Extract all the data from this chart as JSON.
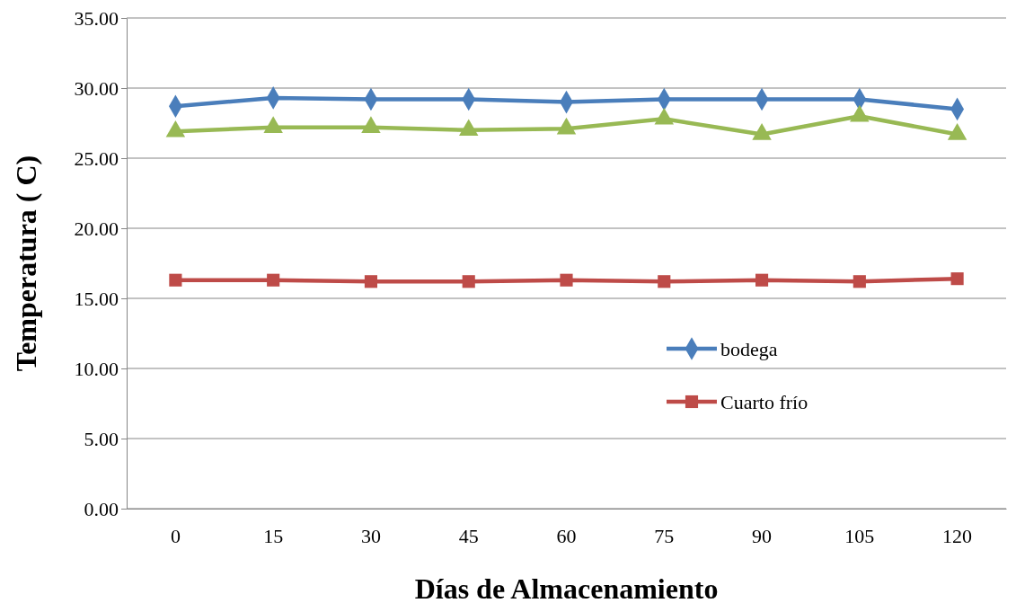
{
  "chart_data": {
    "type": "line",
    "xlabel": "Días de Almacenamiento",
    "ylabel": "Temperatura ( C)",
    "categories": [
      "0",
      "15",
      "30",
      "45",
      "60",
      "75",
      "90",
      "105",
      "120"
    ],
    "series": [
      {
        "name": "bodega",
        "color": "#4a7ebb",
        "marker": "diamond",
        "values": [
          28.7,
          29.3,
          29.2,
          29.2,
          29.0,
          29.2,
          29.2,
          29.2,
          28.5
        ]
      },
      {
        "name": "Cuarto frío",
        "color": "#be4b48",
        "marker": "square",
        "values": [
          16.3,
          16.3,
          16.2,
          16.2,
          16.3,
          16.2,
          16.3,
          16.2,
          16.4
        ]
      },
      {
        "color": "#98b954",
        "marker": "triangle",
        "values": [
          26.9,
          27.2,
          27.2,
          27.0,
          27.1,
          27.8,
          26.7,
          28.0,
          26.7
        ]
      }
    ],
    "ylim": [
      0,
      35
    ],
    "yticks": [
      {
        "value": 0,
        "label": "0.00"
      },
      {
        "value": 5,
        "label": "5.00"
      },
      {
        "value": 10,
        "label": "10.00"
      },
      {
        "value": 15,
        "label": "15.00"
      },
      {
        "value": 20,
        "label": "20.00"
      },
      {
        "value": 25,
        "label": "25.00"
      },
      {
        "value": 30,
        "label": "30.00"
      },
      {
        "value": 35,
        "label": "35.00"
      }
    ],
    "grid": "y",
    "legend": "right",
    "line_style": "solid"
  }
}
